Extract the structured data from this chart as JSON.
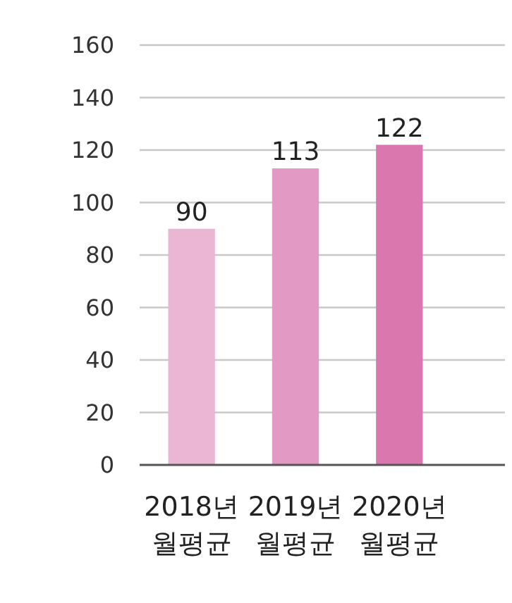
{
  "chart_data": {
    "type": "bar",
    "categories": [
      "2018년 월평균",
      "2019년 월평균",
      "2020년 월평균"
    ],
    "values": [
      90,
      113,
      122
    ],
    "colors": [
      "#eab6d4",
      "#e29ac4",
      "#d977ae"
    ],
    "ylim": [
      0,
      160
    ],
    "yticks": [
      0,
      20,
      40,
      60,
      80,
      100,
      120,
      140,
      160
    ],
    "grid": "y",
    "data_labels": true
  }
}
